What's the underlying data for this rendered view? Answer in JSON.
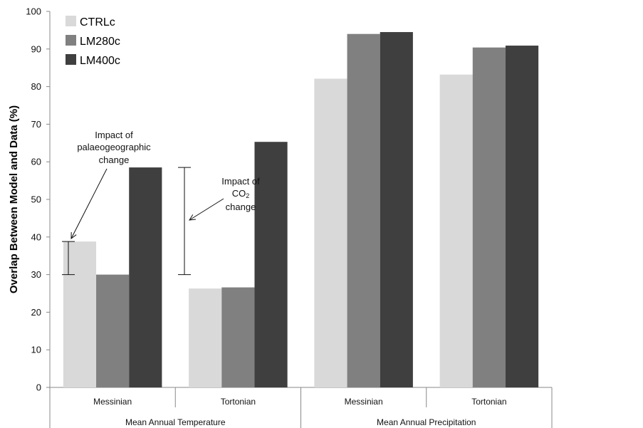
{
  "chart_data": {
    "type": "bar",
    "ylabel": "Overlap Between Model and Data (%)",
    "ylim": [
      0,
      100
    ],
    "yticks": [
      0,
      10,
      20,
      30,
      40,
      50,
      60,
      70,
      80,
      90,
      100
    ],
    "legend_position": "top-left",
    "categories": [
      "Messinian",
      "Tortonian",
      "Messinian",
      "Tortonian"
    ],
    "groups": [
      {
        "label": "Mean Annual Temperature",
        "categories": [
          "Messinian",
          "Tortonian"
        ]
      },
      {
        "label": "Mean Annual Precipitation",
        "categories": [
          "Messinian",
          "Tortonian"
        ]
      }
    ],
    "series": [
      {
        "name": "CTRLc",
        "color": "#d9d9d9",
        "values": [
          38.8,
          26.3,
          82.1,
          83.2
        ]
      },
      {
        "name": "LM280c",
        "color": "#808080",
        "values": [
          30.0,
          26.6,
          94.0,
          90.4
        ]
      },
      {
        "name": "LM400c",
        "color": "#3f3f3f",
        "values": [
          58.5,
          65.3,
          94.5,
          90.9
        ]
      }
    ],
    "annotations": [
      {
        "name": "palaeogeographic",
        "lines": [
          "Impact of",
          "palaeogeographic",
          "change"
        ],
        "bracket_range": [
          30.0,
          38.8
        ]
      },
      {
        "name": "co2",
        "lines": [
          "Impact of",
          "CO",
          "change"
        ],
        "subscript": "2",
        "bracket_range": [
          30.0,
          58.5
        ]
      }
    ]
  }
}
